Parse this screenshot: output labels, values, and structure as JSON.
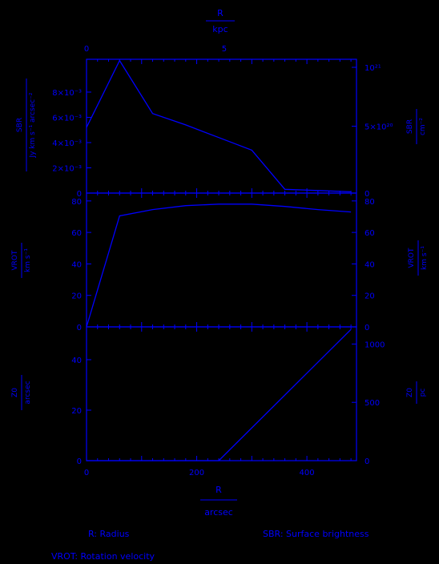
{
  "legend": {
    "r": "R: Radius",
    "sbr": "SBR: Surface brightness",
    "vrot": "VROT: Rotation velocity"
  },
  "axes": {
    "top": {
      "label_num": "R",
      "label_den": "kpc",
      "ticks": [
        "0",
        "5"
      ]
    },
    "bottom": {
      "label_num": "R",
      "label_den": "arcsec",
      "ticks": [
        "0",
        "200",
        "400"
      ]
    }
  },
  "panels": [
    {
      "left_num": "SBR",
      "left_den": "Jy km s⁻¹ arcsec⁻²",
      "right_num": "SBR",
      "right_den": "cm⁻²",
      "left_ticks": [
        "0",
        "2×10⁻³",
        "4×10⁻³",
        "6×10⁻³",
        "8×10⁻³"
      ],
      "right_ticks": [
        "0",
        "5×10²⁰",
        "10²¹"
      ]
    },
    {
      "left_num": "VROT",
      "left_den": "km s⁻¹",
      "right_num": "VROT",
      "right_den": "km s⁻¹",
      "left_ticks": [
        "0",
        "20",
        "40",
        "60",
        "80"
      ],
      "right_ticks": [
        "0",
        "20",
        "40",
        "60",
        "80"
      ]
    },
    {
      "left_num": "Z0",
      "left_den": "arcsec",
      "right_num": "Z0",
      "right_den": "pc",
      "left_ticks": [
        "0",
        "20",
        "40"
      ],
      "right_ticks": [
        "0",
        "500",
        "1000"
      ]
    }
  ],
  "chart_data": [
    {
      "type": "line",
      "xlabel": "R (arcsec)",
      "ylabel": "SBR (Jy km s⁻¹ arcsec⁻²)",
      "xlim": [
        0,
        490
      ],
      "ylim": [
        0,
        0.0106
      ],
      "series": [
        {
          "x": [
            0,
            60,
            120,
            180,
            240,
            300,
            360,
            420,
            480
          ],
          "y": [
            0.0052,
            0.0105,
            0.0063,
            0.0054,
            0.0044,
            0.0034,
            0.0003,
            0.0002,
            0.0001
          ]
        }
      ]
    },
    {
      "type": "line",
      "xlabel": "R (arcsec)",
      "ylabel": "VROT (km s⁻¹)",
      "xlim": [
        0,
        490
      ],
      "ylim": [
        0,
        85
      ],
      "series": [
        {
          "x": [
            0,
            60,
            120,
            180,
            240,
            300,
            360,
            420,
            480
          ],
          "y": [
            0,
            70.5,
            74.5,
            77,
            78,
            78,
            76.5,
            74.5,
            73
          ]
        }
      ]
    },
    {
      "type": "line",
      "xlabel": "R (arcsec)",
      "ylabel": "Z0 (arcsec)",
      "xlim": [
        0,
        490
      ],
      "ylim": [
        0,
        53
      ],
      "series": [
        {
          "x": [
            0,
            60,
            120,
            180,
            240,
            480
          ],
          "y": [
            0,
            0,
            0,
            0,
            0,
            52
          ]
        }
      ]
    }
  ]
}
